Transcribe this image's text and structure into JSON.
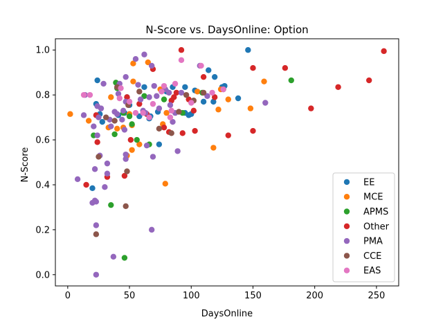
{
  "chart_data": {
    "type": "scatter",
    "title": "N-Score vs. DaysOnline: Option",
    "xlabel": "DaysOnline",
    "ylabel": "N-Score",
    "xlim": [
      -10,
      268
    ],
    "ylim": [
      -0.05,
      1.05
    ],
    "xticks": [
      0,
      50,
      100,
      150,
      200,
      250
    ],
    "yticks": [
      0.0,
      0.2,
      0.4,
      0.6,
      0.8,
      1.0
    ],
    "xtick_labels": [
      "0",
      "50",
      "100",
      "150",
      "200",
      "250"
    ],
    "ytick_labels": [
      "0.0",
      "0.2",
      "0.4",
      "0.6",
      "0.8",
      "1.0"
    ],
    "grid": false,
    "legend_position": "bottom-right",
    "series": [
      {
        "name": "EE",
        "color": "#1f77b4",
        "points": [
          [
            20,
            0.385
          ],
          [
            23,
            0.76
          ],
          [
            24,
            0.865
          ],
          [
            26,
            0.715
          ],
          [
            28,
            0.68
          ],
          [
            41,
            0.71
          ],
          [
            46,
            0.72
          ],
          [
            48,
            0.79
          ],
          [
            50,
            0.755
          ],
          [
            58,
            0.705
          ],
          [
            62,
            0.835
          ],
          [
            66,
            0.695
          ],
          [
            67,
            0.705
          ],
          [
            73,
            0.725
          ],
          [
            74,
            0.58
          ],
          [
            80,
            0.815
          ],
          [
            85,
            0.835
          ],
          [
            95,
            0.72
          ],
          [
            95,
            0.835
          ],
          [
            98,
            0.71
          ],
          [
            100,
            0.715
          ],
          [
            103,
            0.82
          ],
          [
            110,
            0.77
          ],
          [
            114,
            0.91
          ],
          [
            118,
            0.77
          ],
          [
            119,
            0.88
          ],
          [
            125,
            0.835
          ],
          [
            127,
            0.84
          ],
          [
            138,
            0.785
          ],
          [
            146,
            1.0
          ]
        ]
      },
      {
        "name": "MCE",
        "color": "#ff7f0e",
        "points": [
          [
            2,
            0.715
          ],
          [
            17,
            0.685
          ],
          [
            33,
            0.655
          ],
          [
            35,
            0.79
          ],
          [
            40,
            0.65
          ],
          [
            45,
            0.655
          ],
          [
            48,
            0.53
          ],
          [
            50,
            0.715
          ],
          [
            52,
            0.665
          ],
          [
            52,
            0.555
          ],
          [
            53,
            0.86
          ],
          [
            53,
            0.94
          ],
          [
            58,
            0.58
          ],
          [
            65,
            0.945
          ],
          [
            75,
            0.825
          ],
          [
            77,
            0.67
          ],
          [
            79,
            0.405
          ],
          [
            80,
            0.72
          ],
          [
            105,
            0.815
          ],
          [
            118,
            0.565
          ],
          [
            122,
            0.735
          ],
          [
            124,
            0.825
          ],
          [
            130,
            0.78
          ],
          [
            148,
            0.74
          ],
          [
            159,
            0.86
          ]
        ]
      },
      {
        "name": "APMS",
        "color": "#2ca02c",
        "points": [
          [
            21,
            0.62
          ],
          [
            35,
            0.31
          ],
          [
            38,
            0.625
          ],
          [
            39,
            0.855
          ],
          [
            40,
            0.83
          ],
          [
            45,
            0.72
          ],
          [
            46,
            0.075
          ],
          [
            50,
            0.705
          ],
          [
            52,
            0.67
          ],
          [
            56,
            0.6
          ],
          [
            62,
            0.795
          ],
          [
            66,
            0.58
          ],
          [
            78,
            0.78
          ],
          [
            93,
            0.72
          ],
          [
            109,
            0.81
          ],
          [
            181,
            0.865
          ]
        ]
      },
      {
        "name": "Other",
        "color": "#d62728",
        "points": [
          [
            15,
            0.4
          ],
          [
            23,
            0.71
          ],
          [
            24,
            0.59
          ],
          [
            32,
            0.435
          ],
          [
            46,
            0.44
          ],
          [
            48,
            0.79
          ],
          [
            51,
            0.6
          ],
          [
            58,
            0.76
          ],
          [
            64,
            0.715
          ],
          [
            69,
            0.915
          ],
          [
            78,
            0.655
          ],
          [
            82,
            0.635
          ],
          [
            84,
            0.775
          ],
          [
            86,
            0.79
          ],
          [
            88,
            0.81
          ],
          [
            92,
            1.0
          ],
          [
            93,
            0.63
          ],
          [
            98,
            0.78
          ],
          [
            102,
            0.73
          ],
          [
            103,
            0.64
          ],
          [
            110,
            0.88
          ],
          [
            119,
            0.79
          ],
          [
            130,
            0.62
          ],
          [
            150,
            0.92
          ],
          [
            150,
            0.64
          ],
          [
            176,
            0.92
          ],
          [
            197,
            0.74
          ],
          [
            219,
            0.835
          ],
          [
            244,
            0.865
          ],
          [
            256,
            0.995
          ]
        ]
      },
      {
        "name": "PMA",
        "color": "#9467bd",
        "points": [
          [
            8,
            0.425
          ],
          [
            13,
            0.71
          ],
          [
            14,
            0.8
          ],
          [
            20,
            0.32
          ],
          [
            21,
            0.66
          ],
          [
            22,
            0.47
          ],
          [
            22,
            0.33
          ],
          [
            23,
            0.22
          ],
          [
            23,
            0.325
          ],
          [
            23,
            0.0
          ],
          [
            24,
            0.75
          ],
          [
            24,
            0.62
          ],
          [
            25,
            0.7
          ],
          [
            26,
            0.53
          ],
          [
            27,
            0.74
          ],
          [
            29,
            0.85
          ],
          [
            30,
            0.39
          ],
          [
            32,
            0.45
          ],
          [
            32,
            0.495
          ],
          [
            34,
            0.69
          ],
          [
            35,
            0.66
          ],
          [
            37,
            0.08
          ],
          [
            38,
            0.725
          ],
          [
            40,
            0.715
          ],
          [
            41,
            0.805
          ],
          [
            42,
            0.85
          ],
          [
            44,
            0.69
          ],
          [
            45,
            0.73
          ],
          [
            46,
            0.645
          ],
          [
            47,
            0.535
          ],
          [
            47,
            0.515
          ],
          [
            47,
            0.77
          ],
          [
            47,
            0.88
          ],
          [
            55,
            0.96
          ],
          [
            57,
            0.845
          ],
          [
            59,
            0.78
          ],
          [
            61,
            0.73
          ],
          [
            62,
            0.98
          ],
          [
            63,
            0.72
          ],
          [
            64,
            0.575
          ],
          [
            66,
            0.79
          ],
          [
            68,
            0.2
          ],
          [
            68,
            0.93
          ],
          [
            69,
            0.525
          ],
          [
            70,
            0.84
          ],
          [
            72,
            0.795
          ],
          [
            74,
            0.74
          ],
          [
            79,
            0.825
          ],
          [
            82,
            0.81
          ],
          [
            83,
            0.755
          ],
          [
            85,
            0.68
          ],
          [
            87,
            0.72
          ],
          [
            89,
            0.55
          ],
          [
            92,
            0.81
          ],
          [
            107,
            0.93
          ],
          [
            113,
            0.795
          ],
          [
            160,
            0.765
          ]
        ]
      },
      {
        "name": "CCE",
        "color": "#8c564b",
        "points": [
          [
            23,
            0.18
          ],
          [
            25,
            0.525
          ],
          [
            31,
            0.7
          ],
          [
            38,
            0.685
          ],
          [
            40,
            0.835
          ],
          [
            47,
            0.305
          ],
          [
            48,
            0.46
          ],
          [
            49,
            0.755
          ],
          [
            58,
            0.815
          ],
          [
            74,
            0.65
          ],
          [
            84,
            0.63
          ],
          [
            90,
            0.725
          ],
          [
            96,
            0.8
          ],
          [
            102,
            0.775
          ],
          [
            110,
            0.81
          ],
          [
            126,
            0.825
          ]
        ]
      },
      {
        "name": "EAS",
        "color": "#e377c2",
        "points": [
          [
            13,
            0.8
          ],
          [
            18,
            0.8
          ],
          [
            42,
            0.785
          ],
          [
            43,
            0.83
          ],
          [
            50,
            0.77
          ],
          [
            55,
            0.72
          ],
          [
            61,
            0.72
          ],
          [
            66,
            0.7
          ],
          [
            69,
            0.76
          ],
          [
            76,
            0.815
          ],
          [
            78,
            0.84
          ],
          [
            83,
            0.7
          ],
          [
            84,
            0.73
          ],
          [
            87,
            0.85
          ],
          [
            92,
            0.955
          ],
          [
            100,
            0.765
          ],
          [
            108,
            0.93
          ],
          [
            117,
            0.81
          ],
          [
            126,
            0.825
          ]
        ]
      }
    ]
  }
}
